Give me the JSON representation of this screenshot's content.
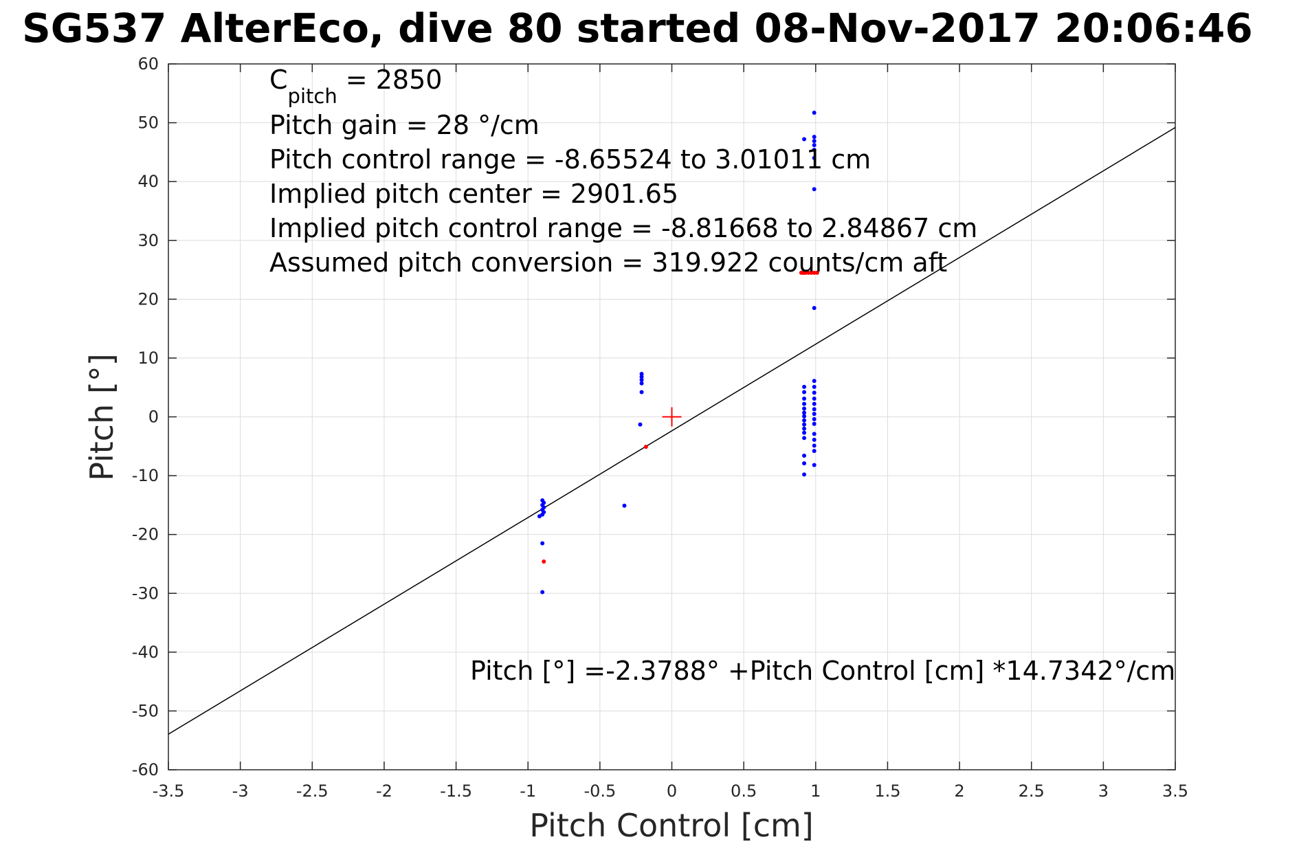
{
  "chart_data": {
    "type": "scatter",
    "title": "SG537 AlterEco, dive 80 started 08-Nov-2017 20:06:46",
    "xlabel": "Pitch Control [cm]",
    "ylabel": "Pitch [°]",
    "xlim": [
      -3.5,
      3.5
    ],
    "ylim": [
      -60,
      60
    ],
    "xticks": [
      -3.5,
      -3,
      -2.5,
      -2,
      -1.5,
      -1,
      -0.5,
      0,
      0.5,
      1,
      1.5,
      2,
      2.5,
      3,
      3.5
    ],
    "xtick_labels": [
      "-3.5",
      "-3",
      "-2.5",
      "-2",
      "-1.5",
      "-1",
      "-0.5",
      "0",
      "0.5",
      "1",
      "1.5",
      "2",
      "2.5",
      "3",
      "3.5"
    ],
    "yticks": [
      -60,
      -50,
      -40,
      -30,
      -20,
      -10,
      0,
      10,
      20,
      30,
      40,
      50,
      60
    ],
    "ytick_labels": [
      "-60",
      "-50",
      "-40",
      "-30",
      "-20",
      "-10",
      "0",
      "10",
      "20",
      "30",
      "40",
      "50",
      "60"
    ],
    "grid": true,
    "annotations": {
      "c_pitch_base": "C",
      "c_pitch_sub": "pitch",
      "c_pitch_value": " = 2850",
      "line2": "Pitch gain = 28 °/cm",
      "line3": "Pitch control range = -8.65524 to 3.01011 cm",
      "line4": "Implied pitch center = 2901.65",
      "line5": "Implied pitch control range = -8.81668 to 2.84867 cm",
      "line6": "Assumed pitch conversion = 319.922 counts/cm aft",
      "fit_equation": "Pitch [°] =-2.3788° +Pitch Control [cm] *14.7342°/cm"
    },
    "fit_line": {
      "intercept": -2.3788,
      "slope": 14.7342,
      "color": "#000000"
    },
    "center_marker": {
      "x": 0,
      "y": 0,
      "color": "#ff0000",
      "symbol": "plus"
    },
    "series": [
      {
        "color": "#0000ff",
        "points": [
          [
            -0.9,
            -14.2
          ],
          [
            -0.89,
            -14.6
          ],
          [
            -0.9,
            -15.0
          ],
          [
            -0.89,
            -15.4
          ],
          [
            -0.9,
            -15.8
          ],
          [
            -0.89,
            -16.2
          ],
          [
            -0.9,
            -16.6
          ],
          [
            -0.92,
            -16.9
          ],
          [
            -0.9,
            -21.5
          ],
          [
            -0.9,
            -29.8
          ],
          [
            -0.33,
            -15.1
          ],
          [
            -0.21,
            7.3
          ],
          [
            -0.21,
            6.8
          ],
          [
            -0.21,
            6.3
          ],
          [
            -0.21,
            5.7
          ],
          [
            -0.21,
            4.2
          ],
          [
            -0.22,
            -1.3
          ],
          [
            0.92,
            47.2
          ],
          [
            0.92,
            5.1
          ],
          [
            0.92,
            4.2
          ],
          [
            0.92,
            3.1
          ],
          [
            0.92,
            2.2
          ],
          [
            0.92,
            1.4
          ],
          [
            0.92,
            0.7
          ],
          [
            0.92,
            0.1
          ],
          [
            0.92,
            -0.6
          ],
          [
            0.92,
            -1.3
          ],
          [
            0.92,
            -2.0
          ],
          [
            0.92,
            -2.7
          ],
          [
            0.92,
            -3.6
          ],
          [
            0.92,
            -6.6
          ],
          [
            0.92,
            -7.9
          ],
          [
            0.92,
            -9.8
          ],
          [
            0.99,
            51.7
          ],
          [
            0.99,
            47.6
          ],
          [
            0.99,
            46.9
          ],
          [
            0.99,
            46.2
          ],
          [
            0.99,
            45.4
          ],
          [
            0.99,
            44.0
          ],
          [
            0.99,
            38.7
          ],
          [
            0.99,
            18.5
          ],
          [
            0.99,
            6.1
          ],
          [
            0.99,
            5.1
          ],
          [
            0.99,
            4.1
          ],
          [
            0.99,
            3.1
          ],
          [
            0.99,
            2.2
          ],
          [
            0.99,
            1.3
          ],
          [
            0.99,
            0.5
          ],
          [
            0.99,
            -0.4
          ],
          [
            0.99,
            -1.2
          ],
          [
            0.99,
            -2.9
          ],
          [
            0.99,
            -3.9
          ],
          [
            0.99,
            -4.9
          ],
          [
            0.99,
            -5.8
          ],
          [
            0.99,
            -8.2
          ]
        ]
      },
      {
        "color": "#ff0000",
        "points": [
          [
            -0.89,
            -24.6
          ],
          [
            -0.18,
            -5.1
          ],
          [
            0.9,
            24.5
          ],
          [
            0.91,
            24.5
          ],
          [
            0.92,
            24.5
          ],
          [
            0.93,
            24.5
          ],
          [
            0.95,
            24.5
          ],
          [
            0.97,
            24.5
          ],
          [
            0.99,
            24.5
          ],
          [
            1.01,
            24.5
          ]
        ]
      }
    ]
  }
}
